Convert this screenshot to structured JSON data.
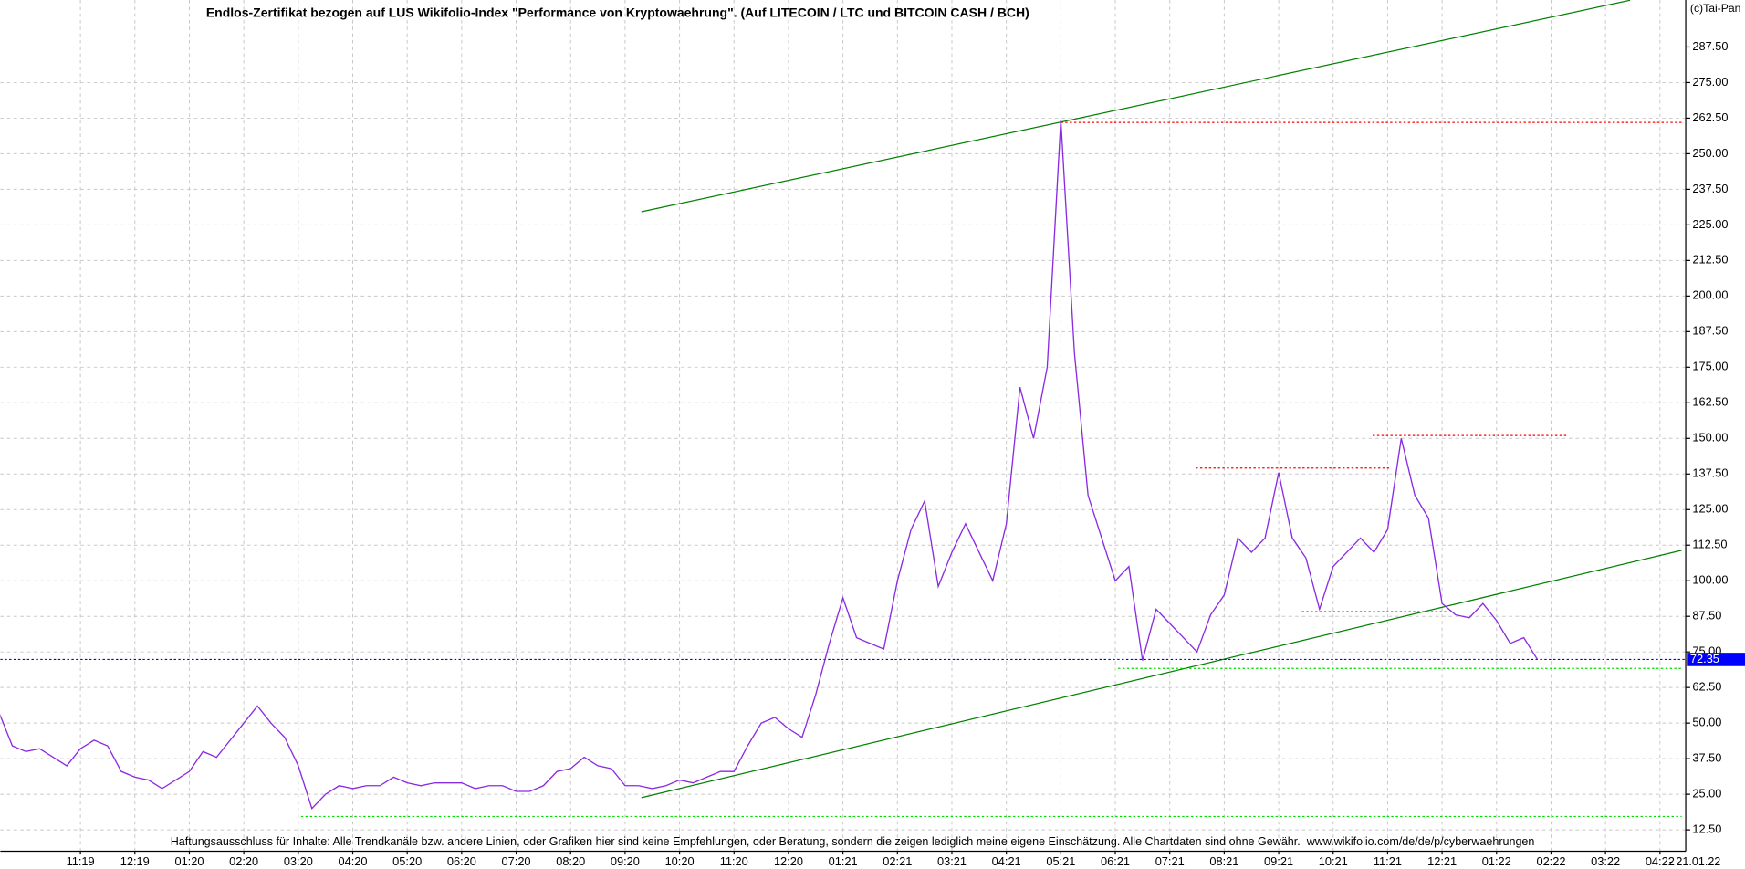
{
  "chart_data": {
    "type": "line",
    "title": "Endlos-Zertifikat bezogen auf LUS Wikifolio-Index \"Performance von Kryptowaehrung\". (Auf LITECOIN / LTC und BITCOIN CASH / BCH)",
    "copyright": "(c)Tai-Pan",
    "footer": "Haftungsausschluss für Inhalte: Alle Trendkanäle bzw. andere Linien, oder Grafiken hier sind keine Empfehlungen, oder Beratung, sondern die zeigen lediglich meine eigene Einschätzung. Alle Chartdaten sind ohne Gewähr.  www.wikifolio.com/de/de/p/cyberwaehrungen",
    "date_label": "- 21.01.22",
    "color": "#8a2be2",
    "categories": [
      null,
      null,
      null,
      null,
      null,
      null,
      "11:19",
      null,
      null,
      null,
      "12:19",
      null,
      null,
      null,
      "01:20",
      null,
      null,
      null,
      "02:20",
      null,
      null,
      null,
      "03:20",
      null,
      null,
      null,
      "04:20",
      null,
      null,
      null,
      "05:20",
      null,
      null,
      null,
      "06:20",
      null,
      null,
      null,
      "07:20",
      null,
      null,
      null,
      "08:20",
      null,
      null,
      null,
      "09:20",
      null,
      null,
      null,
      "10:20",
      null,
      null,
      null,
      "11:20",
      null,
      null,
      null,
      "12:20",
      null,
      null,
      null,
      "01:21",
      null,
      null,
      null,
      "02:21",
      null,
      null,
      null,
      "03:21",
      null,
      null,
      null,
      "04:21",
      null,
      null,
      null,
      "05:21",
      null,
      null,
      null,
      "06:21",
      null,
      null,
      null,
      "07:21",
      null,
      null,
      null,
      "08:21",
      null,
      null,
      null,
      "09:21",
      null,
      null,
      null,
      "10:21",
      null,
      null,
      null,
      "11:21",
      null,
      null,
      null,
      "12:21",
      null,
      null,
      null,
      "01:22",
      null,
      null,
      null,
      "02:22",
      null,
      null,
      null,
      "03:22",
      null,
      null,
      null,
      "04:22"
    ],
    "values": [
      54,
      42,
      40,
      41,
      38,
      35,
      41,
      44,
      42,
      33,
      31,
      30,
      27,
      30,
      33,
      40,
      38,
      44,
      50,
      56,
      50,
      45,
      35,
      20,
      25,
      28,
      27,
      28,
      28,
      31,
      29,
      28,
      29,
      29,
      29,
      27,
      28,
      28,
      26,
      26,
      28,
      33,
      34,
      38,
      35,
      34,
      28,
      28,
      27,
      28,
      30,
      29,
      31,
      33,
      33,
      42,
      50,
      52,
      48,
      45,
      60,
      78,
      94,
      80,
      78,
      76,
      100,
      118,
      128,
      98,
      110,
      120,
      110,
      100,
      120,
      168,
      150,
      175,
      262,
      180,
      130,
      115,
      100,
      105,
      72,
      90,
      85,
      80,
      75,
      88,
      95,
      115,
      110,
      115,
      138,
      115,
      108,
      90,
      105,
      110,
      115,
      110,
      118,
      150,
      130,
      122,
      92,
      88,
      87,
      92,
      86,
      78,
      80,
      72.35,
      null,
      null,
      null,
      null,
      null,
      null,
      null,
      null,
      null
    ],
    "current": {
      "value": 72.35,
      "color": "#0000ff"
    },
    "trend_lines": [
      {
        "color": "#008000",
        "style": "solid",
        "from": [
          47.2,
          229.6
        ],
        "to": [
          119.8,
          303.9
        ]
      },
      {
        "color": "#008000",
        "style": "solid",
        "from": [
          47.2,
          23.8
        ],
        "to": [
          123.6,
          110.7
        ]
      },
      {
        "color": "#ff0000",
        "style": "dotted",
        "from": [
          78,
          261
        ],
        "to": [
          123.6,
          261
        ]
      },
      {
        "color": "#ff0000",
        "style": "dotted",
        "from": [
          87.9,
          139.6
        ],
        "to": [
          102.2,
          139.6
        ]
      },
      {
        "color": "#ff0000",
        "style": "dotted",
        "from": [
          100.9,
          151
        ],
        "to": [
          115.2,
          151
        ]
      },
      {
        "color": "#00dd00",
        "style": "dotted",
        "from": [
          95.7,
          89.2
        ],
        "to": [
          106.3,
          89.2
        ]
      },
      {
        "color": "#00dd00",
        "style": "dotted",
        "from": [
          82.2,
          69.2
        ],
        "to": [
          123.6,
          69.2
        ]
      },
      {
        "color": "#00dd00",
        "style": "dotted",
        "from": [
          22.2,
          17.2
        ],
        "to": [
          123.6,
          17.2
        ]
      }
    ],
    "ylim": [
      5,
      304
    ],
    "yticks": [
      {
        "value": 12.5,
        "label": "12.50"
      },
      {
        "value": 25,
        "label": "25.00"
      },
      {
        "value": 37.5,
        "label": "37.50"
      },
      {
        "value": 50,
        "label": "50.00"
      },
      {
        "value": 62.5,
        "label": "62.50"
      },
      {
        "value": 75,
        "label": "75.00"
      },
      {
        "value": 87.5,
        "label": "87.50"
      },
      {
        "value": 100,
        "label": "100.00"
      },
      {
        "value": 112.5,
        "label": "112.50"
      },
      {
        "value": 125,
        "label": "125.00"
      },
      {
        "value": 137.5,
        "label": "137.50"
      },
      {
        "value": 150,
        "label": "150.00"
      },
      {
        "value": 162.5,
        "label": "162.50"
      },
      {
        "value": 175,
        "label": "175.00"
      },
      {
        "value": 187.5,
        "label": "187.50"
      },
      {
        "value": 200,
        "label": "200.00"
      },
      {
        "value": 212.5,
        "label": "212.50"
      },
      {
        "value": 225,
        "label": "225.00"
      },
      {
        "value": 237.5,
        "label": "237.50"
      },
      {
        "value": 250,
        "label": "250.00"
      },
      {
        "value": 262.5,
        "label": "262.50"
      },
      {
        "value": 275,
        "label": "275.00"
      },
      {
        "value": 287.5,
        "label": "287.50"
      }
    ],
    "grid": true
  }
}
